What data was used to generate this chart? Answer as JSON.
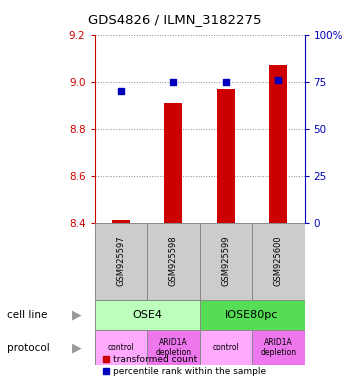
{
  "title": "GDS4826 / ILMN_3182275",
  "samples": [
    "GSM925597",
    "GSM925598",
    "GSM925599",
    "GSM925600"
  ],
  "bar_values": [
    8.41,
    8.91,
    8.97,
    9.07
  ],
  "blue_values": [
    70,
    75,
    75,
    76
  ],
  "ylim_left": [
    8.4,
    9.2
  ],
  "ylim_right": [
    0,
    100
  ],
  "yticks_left": [
    8.4,
    8.6,
    8.8,
    9.0,
    9.2
  ],
  "yticks_right": [
    0,
    25,
    50,
    75,
    100
  ],
  "ytick_labels_right": [
    "0",
    "25",
    "50",
    "75",
    "100%"
  ],
  "bar_color": "#cc0000",
  "blue_color": "#0000bb",
  "bar_bottom": 8.4,
  "cell_line_colors": [
    "#bbffbb",
    "#55dd55"
  ],
  "cell_line_labels": [
    "OSE4",
    "IOSE80pc"
  ],
  "protocol_labels": [
    "control",
    "ARID1A\ndepletion",
    "control",
    "ARID1A\ndepletion"
  ],
  "protocol_colors": [
    "#ffaaff",
    "#ee77ee",
    "#ffaaff",
    "#ee77ee"
  ],
  "legend_red": "transformed count",
  "legend_blue": "percentile rank within the sample",
  "grid_color": "#888888",
  "left_tick_color": "#cc0000",
  "right_tick_color": "#0000bb",
  "gsm_bg_color": "#cccccc",
  "gsm_edge_color": "#888888"
}
